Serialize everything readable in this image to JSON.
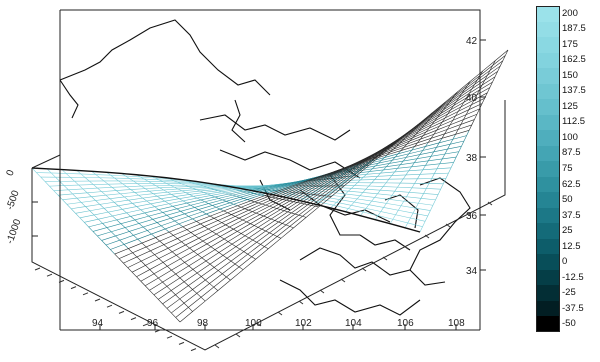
{
  "chart_data": {
    "type": "surface3d",
    "axes": {
      "lat_ticks": [
        "42",
        "40",
        "38",
        "36",
        "34"
      ],
      "lon_ticks": [
        "94",
        "96",
        "98",
        "100",
        "102",
        "104",
        "106",
        "108"
      ],
      "depth_ticks": [
        "0",
        "-500",
        "-1000"
      ]
    },
    "surface": {
      "lon_range": [
        90,
        108
      ],
      "lat_range": [
        33,
        42
      ]
    },
    "colorbar": {
      "levels": [
        "200",
        "187.5",
        "175",
        "162.5",
        "150",
        "137.5",
        "125",
        "112.5",
        "100",
        "87.5",
        "75",
        "62.5",
        "50",
        "37.5",
        "25",
        "12.5",
        "0",
        "-12.5",
        "-25",
        "-37.5",
        "-50"
      ],
      "colors": [
        "#9be2ea",
        "#93dde6",
        "#8ad8e2",
        "#82d3de",
        "#79ccd8",
        "#6fc6d2",
        "#65bfcc",
        "#5ab7c5",
        "#4faebd",
        "#44a5b4",
        "#399ba9",
        "#2f919f",
        "#258594",
        "#1c7887",
        "#146b79",
        "#0d5d6a",
        "#084e59",
        "#053e47",
        "#032e35",
        "#021e23",
        "#000000"
      ]
    }
  }
}
